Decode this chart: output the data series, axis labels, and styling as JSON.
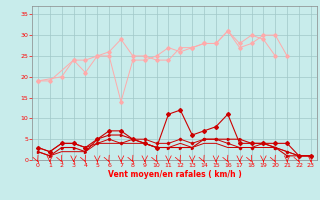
{
  "x": [
    0,
    1,
    2,
    3,
    4,
    5,
    6,
    7,
    8,
    9,
    10,
    11,
    12,
    13,
    14,
    15,
    16,
    17,
    18,
    19,
    20,
    21,
    22,
    23
  ],
  "line1": [
    19,
    19,
    null,
    24,
    21,
    25,
    25,
    14,
    24,
    24,
    25,
    27,
    26,
    27,
    28,
    28,
    31,
    27,
    28,
    30,
    30,
    25,
    null,
    null
  ],
  "line2": [
    19,
    null,
    20,
    24,
    24,
    25,
    26,
    29,
    25,
    25,
    24,
    24,
    27,
    27,
    28,
    28,
    31,
    28,
    30,
    29,
    25,
    null,
    null,
    null
  ],
  "line3": [
    2,
    1,
    3,
    3,
    2,
    5,
    6,
    6,
    5,
    4,
    3,
    3,
    3,
    3,
    5,
    5,
    5,
    5,
    4,
    4,
    3,
    1,
    1,
    1
  ],
  "line4": [
    3,
    2,
    4,
    4,
    3,
    5,
    7,
    7,
    5,
    4,
    3,
    11,
    12,
    6,
    7,
    8,
    11,
    4,
    4,
    4,
    4,
    4,
    1,
    1
  ],
  "line5": [
    3,
    2,
    4,
    4,
    3,
    4,
    5,
    4,
    5,
    5,
    4,
    4,
    5,
    4,
    5,
    5,
    4,
    3,
    3,
    4,
    3,
    2,
    1,
    1
  ],
  "line6": [
    2,
    1,
    2,
    2,
    2,
    4,
    4,
    4,
    4,
    4,
    3,
    3,
    4,
    3,
    4,
    4,
    3,
    3,
    3,
    3,
    3,
    2,
    1,
    1
  ],
  "bg_color": "#c8eceb",
  "grid_color": "#a0c8c8",
  "line1_color": "#ffaaaa",
  "line2_color": "#ffaaaa",
  "line3_color": "#cc0000",
  "line4_color": "#cc0000",
  "line5_color": "#cc0000",
  "line6_color": "#cc0000",
  "xlabel": "Vent moyen/en rafales ( km/h )",
  "ylim": [
    0,
    37
  ],
  "xlim": [
    -0.5,
    23.5
  ],
  "yticks": [
    0,
    5,
    10,
    15,
    20,
    25,
    30,
    35
  ],
  "xticks": [
    0,
    1,
    2,
    3,
    4,
    5,
    6,
    7,
    8,
    9,
    10,
    11,
    12,
    13,
    14,
    15,
    16,
    17,
    18,
    19,
    20,
    21,
    22,
    23
  ]
}
